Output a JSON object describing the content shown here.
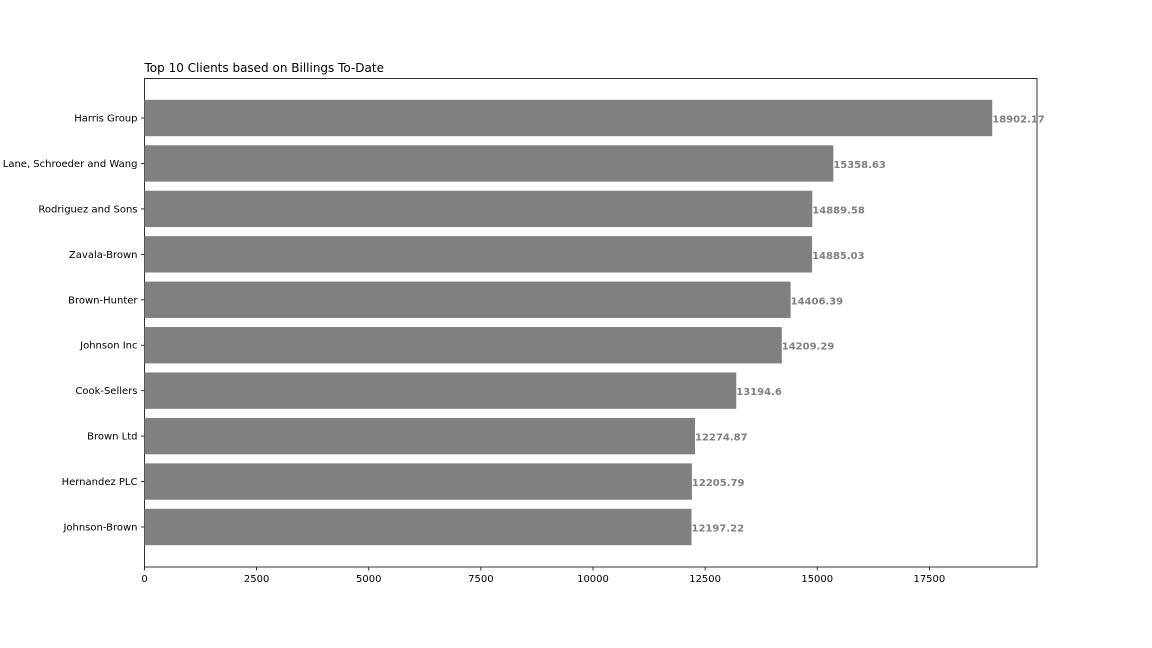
{
  "chart_data": {
    "type": "bar",
    "orientation": "horizontal",
    "title": "Top 10 Clients based on Billings To-Date",
    "xlabel": "",
    "ylabel": "",
    "categories": [
      "Harris Group",
      "Lane, Schroeder and Wang",
      "Rodriguez and Sons",
      "Zavala-Brown",
      "Brown-Hunter",
      "Johnson Inc",
      "Cook-Sellers",
      "Brown Ltd",
      "Hernandez PLC",
      "Johnson-Brown"
    ],
    "values": [
      18902.17,
      15358.63,
      14889.58,
      14885.03,
      14406.39,
      14209.29,
      13194.6,
      12274.87,
      12205.79,
      12197.22
    ],
    "value_labels": [
      "18902.17",
      "15358.63",
      "14889.58",
      "14885.03",
      "14406.39",
      "14209.29",
      "13194.6",
      "12274.87",
      "12205.79",
      "12197.22"
    ],
    "xlim": [
      0,
      19900
    ],
    "xticks": [
      0,
      2500,
      5000,
      7500,
      10000,
      12500,
      15000,
      17500
    ],
    "xtick_labels": [
      "0",
      "2500",
      "5000",
      "7500",
      "10000",
      "12500",
      "15000",
      "17500"
    ],
    "grid": false,
    "legend": "none",
    "bar_color": "#808080",
    "value_label_color": "#808080"
  }
}
